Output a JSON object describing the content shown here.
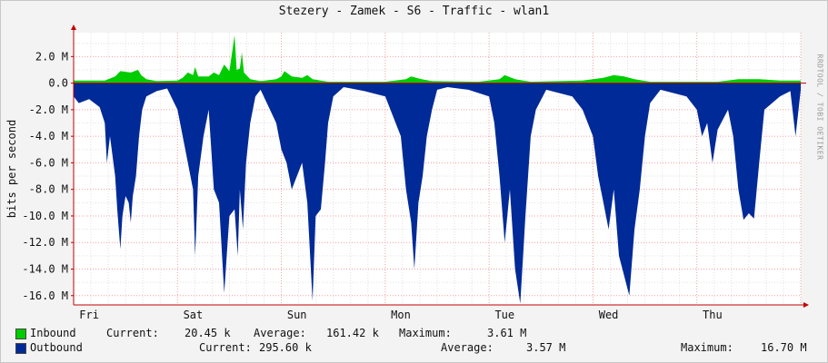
{
  "chart_data": {
    "type": "area",
    "title": "Stezery - Zamek - S6 - Traffic - wlan1",
    "ylabel": "bits per second",
    "xlabel": "",
    "x_ticks": [
      "Fri",
      "Sat",
      "Sun",
      "Mon",
      "Tue",
      "Wed",
      "Thu"
    ],
    "y_ticks": [
      "2.0 M",
      "0.0",
      "-2.0 M",
      "-4.0 M",
      "-6.0 M",
      "-8.0 M",
      "-10.0 M",
      "-12.0 M",
      "-14.0 M",
      "-16.0 M"
    ],
    "y_tick_values": [
      2,
      0,
      -2,
      -4,
      -6,
      -8,
      -10,
      -12,
      -14,
      -16
    ],
    "ylim": [
      -16.7,
      3.8
    ],
    "units": "M bits per second",
    "grid": true,
    "time_range_days": 7,
    "series": [
      {
        "name": "Inbound",
        "color": "#00cc00",
        "direction": "positive",
        "points": [
          [
            0.0,
            0.2
          ],
          [
            0.3,
            0.2
          ],
          [
            0.4,
            0.5
          ],
          [
            0.45,
            0.9
          ],
          [
            0.55,
            0.8
          ],
          [
            0.62,
            1.0
          ],
          [
            0.65,
            0.6
          ],
          [
            0.7,
            0.3
          ],
          [
            0.8,
            0.15
          ],
          [
            1.0,
            0.2
          ],
          [
            1.05,
            0.4
          ],
          [
            1.1,
            0.8
          ],
          [
            1.15,
            0.6
          ],
          [
            1.17,
            1.2
          ],
          [
            1.2,
            0.5
          ],
          [
            1.3,
            0.5
          ],
          [
            1.35,
            0.8
          ],
          [
            1.4,
            0.6
          ],
          [
            1.45,
            1.4
          ],
          [
            1.5,
            0.9
          ],
          [
            1.55,
            3.6
          ],
          [
            1.57,
            1.0
          ],
          [
            1.6,
            1.1
          ],
          [
            1.62,
            2.3
          ],
          [
            1.64,
            0.8
          ],
          [
            1.7,
            0.3
          ],
          [
            1.8,
            0.15
          ],
          [
            1.95,
            0.3
          ],
          [
            2.0,
            0.5
          ],
          [
            2.03,
            0.9
          ],
          [
            2.1,
            0.5
          ],
          [
            2.2,
            0.4
          ],
          [
            2.25,
            0.6
          ],
          [
            2.3,
            0.3
          ],
          [
            2.45,
            0.1
          ],
          [
            3.0,
            0.1
          ],
          [
            3.2,
            0.3
          ],
          [
            3.25,
            0.5
          ],
          [
            3.35,
            0.3
          ],
          [
            3.45,
            0.15
          ],
          [
            3.9,
            0.1
          ],
          [
            4.1,
            0.3
          ],
          [
            4.15,
            0.6
          ],
          [
            4.25,
            0.3
          ],
          [
            4.4,
            0.1
          ],
          [
            4.9,
            0.2
          ],
          [
            5.1,
            0.4
          ],
          [
            5.2,
            0.6
          ],
          [
            5.3,
            0.5
          ],
          [
            5.4,
            0.3
          ],
          [
            5.55,
            0.1
          ],
          [
            6.2,
            0.1
          ],
          [
            6.4,
            0.3
          ],
          [
            6.6,
            0.3
          ],
          [
            6.8,
            0.2
          ],
          [
            7.0,
            0.2
          ]
        ],
        "current": "20.45 k",
        "average": "161.42 k",
        "maximum": "3.61 M"
      },
      {
        "name": "Outbound",
        "color": "#002a97",
        "direction": "negative",
        "points": [
          [
            0.0,
            -1.0
          ],
          [
            0.05,
            -1.5
          ],
          [
            0.15,
            -1.2
          ],
          [
            0.25,
            -1.8
          ],
          [
            0.3,
            -3.0
          ],
          [
            0.32,
            -6.0
          ],
          [
            0.35,
            -4.0
          ],
          [
            0.4,
            -7.0
          ],
          [
            0.42,
            -9.5
          ],
          [
            0.45,
            -12.5
          ],
          [
            0.47,
            -10.0
          ],
          [
            0.5,
            -8.5
          ],
          [
            0.53,
            -9.0
          ],
          [
            0.55,
            -10.5
          ],
          [
            0.57,
            -8.5
          ],
          [
            0.6,
            -7.0
          ],
          [
            0.63,
            -4.0
          ],
          [
            0.66,
            -2.0
          ],
          [
            0.7,
            -1.0
          ],
          [
            0.8,
            -0.6
          ],
          [
            0.9,
            -0.4
          ],
          [
            1.0,
            -2.0
          ],
          [
            1.05,
            -4.0
          ],
          [
            1.1,
            -6.0
          ],
          [
            1.15,
            -8.0
          ],
          [
            1.17,
            -13.0
          ],
          [
            1.2,
            -7.0
          ],
          [
            1.25,
            -4.0
          ],
          [
            1.3,
            -2.0
          ],
          [
            1.35,
            -8.0
          ],
          [
            1.4,
            -9.0
          ],
          [
            1.45,
            -15.8
          ],
          [
            1.5,
            -10.0
          ],
          [
            1.55,
            -9.5
          ],
          [
            1.58,
            -13.0
          ],
          [
            1.6,
            -8.0
          ],
          [
            1.63,
            -11.0
          ],
          [
            1.66,
            -6.0
          ],
          [
            1.7,
            -3.0
          ],
          [
            1.75,
            -1.0
          ],
          [
            1.8,
            -0.5
          ],
          [
            1.95,
            -3.0
          ],
          [
            2.0,
            -5.0
          ],
          [
            2.05,
            -6.0
          ],
          [
            2.1,
            -8.0
          ],
          [
            2.15,
            -7.0
          ],
          [
            2.2,
            -6.0
          ],
          [
            2.25,
            -9.0
          ],
          [
            2.3,
            -16.4
          ],
          [
            2.33,
            -10.0
          ],
          [
            2.38,
            -9.5
          ],
          [
            2.42,
            -6.0
          ],
          [
            2.45,
            -3.0
          ],
          [
            2.5,
            -1.0
          ],
          [
            2.6,
            -0.3
          ],
          [
            2.8,
            -0.6
          ],
          [
            3.0,
            -1.0
          ],
          [
            3.05,
            -2.0
          ],
          [
            3.1,
            -3.0
          ],
          [
            3.15,
            -4.0
          ],
          [
            3.2,
            -8.0
          ],
          [
            3.25,
            -10.5
          ],
          [
            3.28,
            -14.0
          ],
          [
            3.32,
            -9.0
          ],
          [
            3.36,
            -7.0
          ],
          [
            3.4,
            -4.0
          ],
          [
            3.45,
            -2.0
          ],
          [
            3.5,
            -0.5
          ],
          [
            3.6,
            -0.3
          ],
          [
            3.8,
            -0.5
          ],
          [
            4.0,
            -1.0
          ],
          [
            4.05,
            -3.0
          ],
          [
            4.1,
            -7.0
          ],
          [
            4.15,
            -12.0
          ],
          [
            4.2,
            -8.0
          ],
          [
            4.25,
            -14.0
          ],
          [
            4.3,
            -16.6
          ],
          [
            4.35,
            -10.0
          ],
          [
            4.4,
            -4.0
          ],
          [
            4.45,
            -2.0
          ],
          [
            4.55,
            -0.5
          ],
          [
            4.8,
            -1.0
          ],
          [
            4.9,
            -2.0
          ],
          [
            5.0,
            -4.0
          ],
          [
            5.05,
            -7.0
          ],
          [
            5.1,
            -9.0
          ],
          [
            5.15,
            -11.0
          ],
          [
            5.2,
            -8.0
          ],
          [
            5.25,
            -13.0
          ],
          [
            5.3,
            -14.5
          ],
          [
            5.35,
            -16.0
          ],
          [
            5.4,
            -11.0
          ],
          [
            5.45,
            -8.0
          ],
          [
            5.5,
            -4.0
          ],
          [
            5.55,
            -1.5
          ],
          [
            5.65,
            -0.5
          ],
          [
            5.9,
            -1.0
          ],
          [
            6.0,
            -2.0
          ],
          [
            6.05,
            -4.0
          ],
          [
            6.1,
            -3.0
          ],
          [
            6.15,
            -6.0
          ],
          [
            6.2,
            -3.5
          ],
          [
            6.3,
            -2.0
          ],
          [
            6.35,
            -4.0
          ],
          [
            6.4,
            -8.0
          ],
          [
            6.45,
            -10.3
          ],
          [
            6.5,
            -9.8
          ],
          [
            6.55,
            -10.2
          ],
          [
            6.6,
            -6.0
          ],
          [
            6.65,
            -2.0
          ],
          [
            6.8,
            -1.0
          ],
          [
            6.9,
            -0.6
          ],
          [
            6.95,
            -4.0
          ],
          [
            7.0,
            -0.5
          ]
        ],
        "current": "295.60 k",
        "average": "3.57 M",
        "maximum": "16.70 M"
      }
    ]
  },
  "legend": {
    "inbound": {
      "label": "Inbound",
      "current_label": "Current:",
      "current": "20.45 k",
      "average_label": "Average:",
      "average": "161.42 k",
      "maximum_label": "Maximum:",
      "maximum": "3.61 M"
    },
    "outbound": {
      "label": "Outbound",
      "current_label": "Current:",
      "current": "295.60 k",
      "average_label": "Average:",
      "average": "3.57 M",
      "maximum_label": "Maximum:",
      "maximum": "16.70 M"
    }
  },
  "watermark": "RRDTOOL / TOBI OETIKER",
  "colors": {
    "inbound": "#00cc00",
    "outbound": "#002a97",
    "grid_major": "#f2a0a0",
    "grid_minor": "#e0e0e0",
    "axis": "#c00000"
  }
}
